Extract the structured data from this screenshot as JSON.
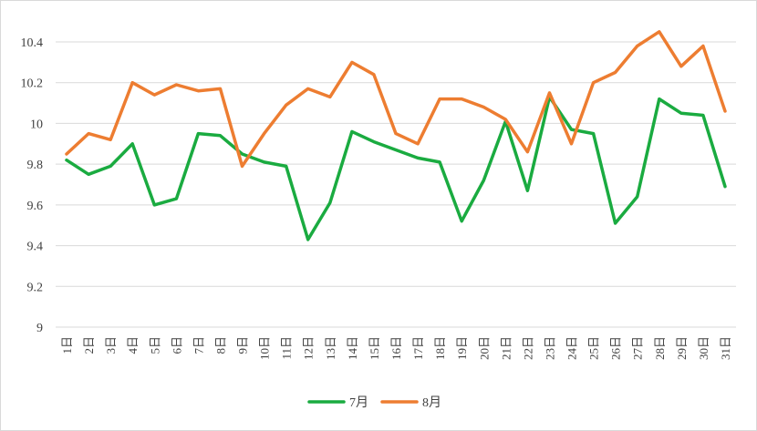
{
  "chart_data": {
    "type": "line",
    "title": "",
    "xlabel": "",
    "ylabel": "",
    "categories": [
      "1日",
      "2日",
      "3日",
      "4日",
      "5日",
      "6日",
      "7日",
      "8日",
      "9日",
      "10日",
      "11日",
      "12日",
      "13日",
      "14日",
      "15日",
      "16日",
      "17日",
      "18日",
      "19日",
      "20日",
      "21日",
      "22日",
      "23日",
      "24日",
      "25日",
      "26日",
      "27日",
      "28日",
      "29日",
      "30日",
      "31日"
    ],
    "ylim": [
      9,
      10.4
    ],
    "yticks": [
      "9",
      "9.2",
      "9.4",
      "9.6",
      "9.8",
      "10",
      "10.2",
      "10.4"
    ],
    "grid": true,
    "legend_position": "bottom",
    "series": [
      {
        "name": "7月",
        "color": "#1aab40",
        "values": [
          9.82,
          9.75,
          9.79,
          9.9,
          9.6,
          9.63,
          9.95,
          9.94,
          9.85,
          9.81,
          9.79,
          9.43,
          9.61,
          9.96,
          9.91,
          9.87,
          9.83,
          9.81,
          9.52,
          9.72,
          10.01,
          9.67,
          10.13,
          9.97,
          9.95,
          9.51,
          9.64,
          10.12,
          10.05,
          10.04,
          9.69
        ]
      },
      {
        "name": "8月",
        "color": "#ed7d31",
        "values": [
          9.85,
          9.95,
          9.92,
          10.2,
          10.14,
          10.19,
          10.16,
          10.17,
          9.79,
          9.95,
          10.09,
          10.17,
          10.13,
          10.3,
          10.24,
          9.95,
          9.9,
          10.12,
          10.12,
          10.08,
          10.02,
          9.86,
          10.15,
          9.9,
          10.2,
          10.25,
          10.38,
          10.45,
          10.28,
          10.38,
          10.06
        ]
      }
    ]
  }
}
